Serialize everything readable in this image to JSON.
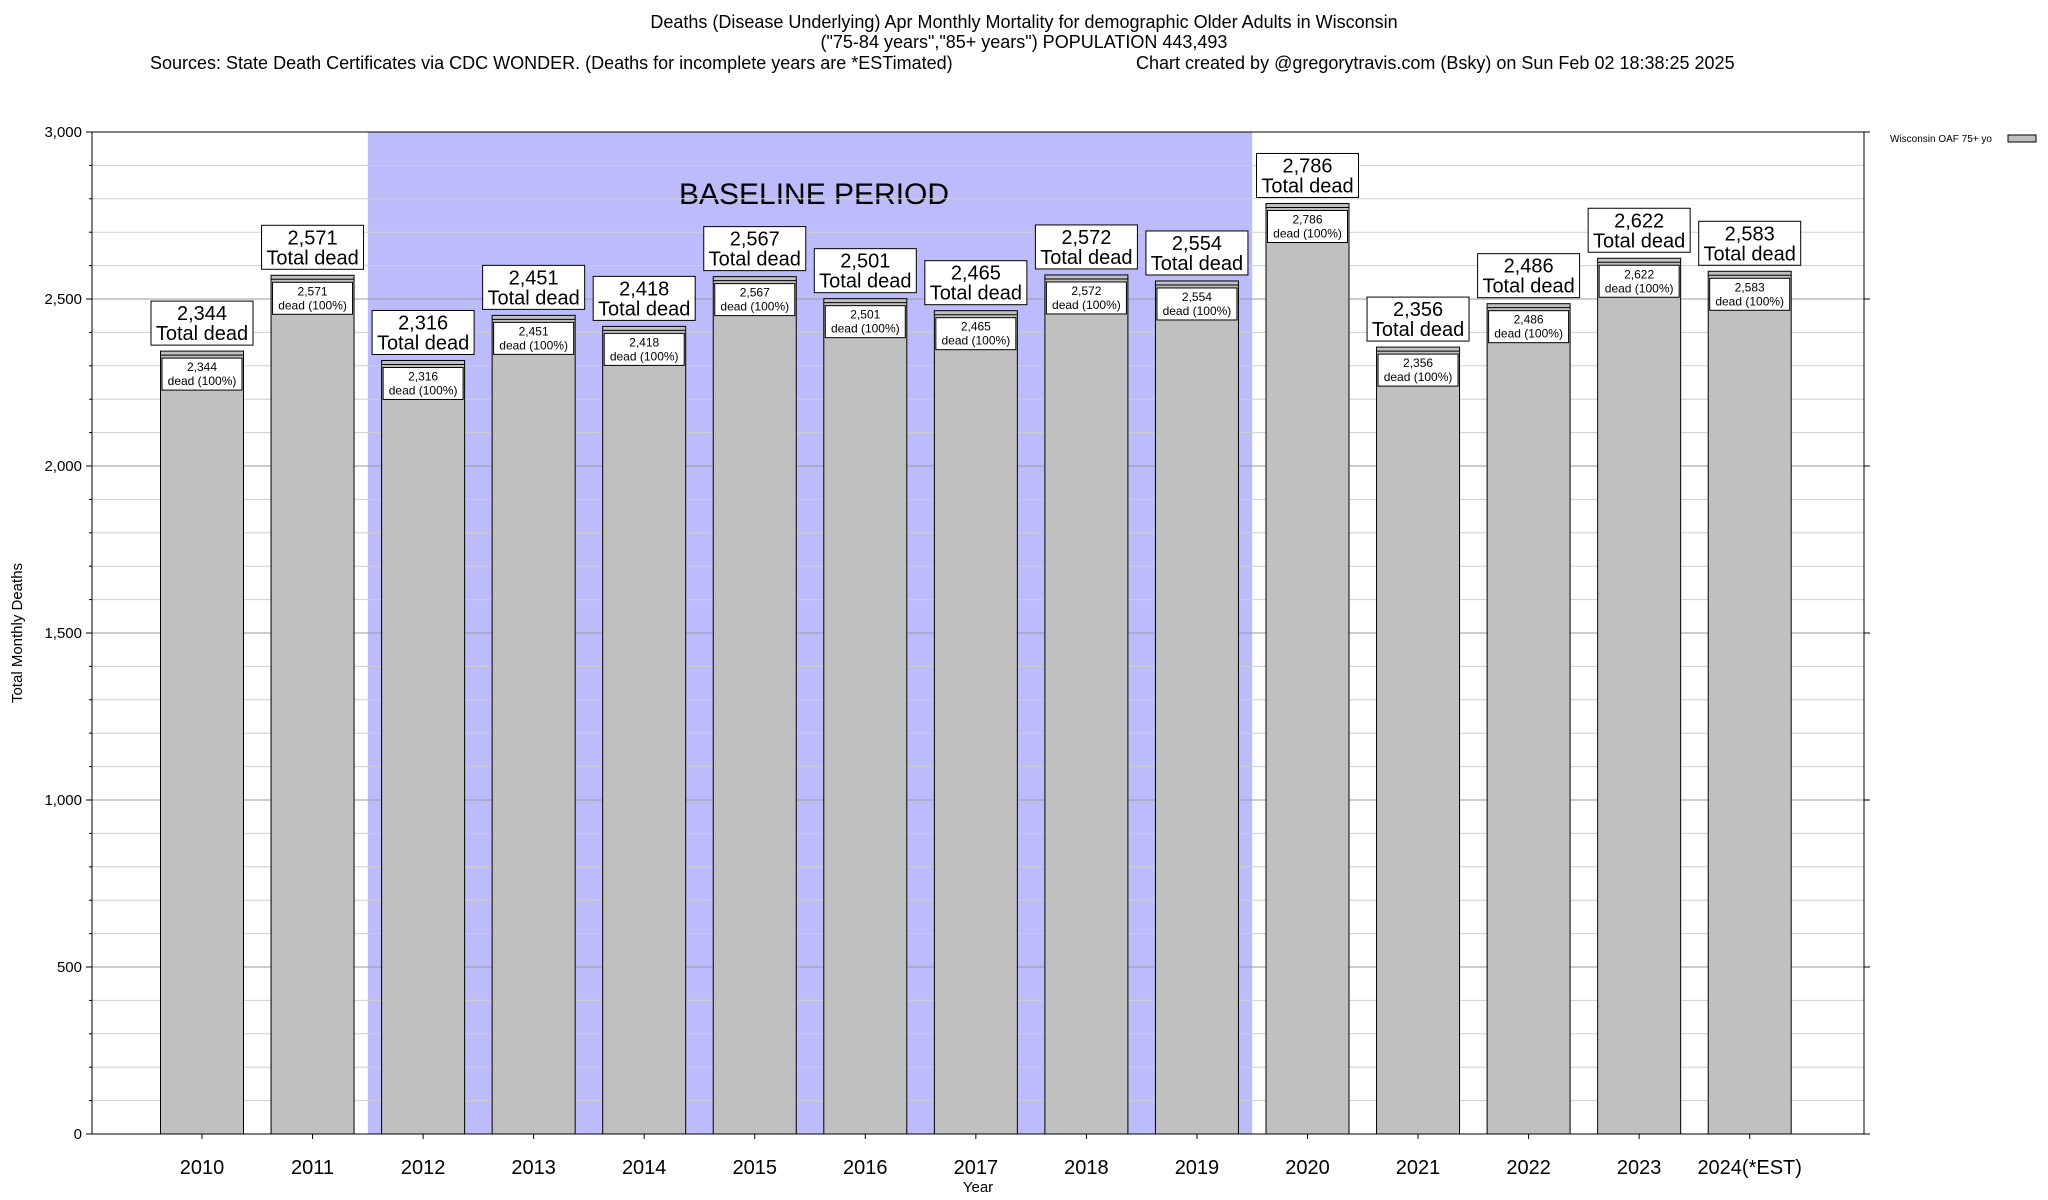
{
  "chart_data": {
    "type": "bar",
    "title": "Deaths (Disease Underlying) Apr Monthly Mortality for demographic Older Adults in Wisconsin",
    "subtitle": "(\"75-84 years\",\"85+ years\") POPULATION 443,493",
    "sources": "Sources: State Death Certificates via CDC WONDER. (Deaths for incomplete years are *ESTimated)",
    "credit": "Chart created by @gregorytravis.com (Bsky) on Sun Feb 02 18:38:25 2025",
    "xlabel": "Year",
    "ylabel": "Total Monthly Deaths",
    "ylim": [
      0,
      3000
    ],
    "yticks": [
      0,
      500,
      1000,
      1500,
      2000,
      2500,
      3000
    ],
    "ytick_labels": [
      "0",
      "500",
      "1,000",
      "1,500",
      "2,000",
      "2,500",
      "3,000"
    ],
    "minor_step": 100,
    "categories": [
      "2010",
      "2011",
      "2012",
      "2013",
      "2014",
      "2015",
      "2016",
      "2017",
      "2018",
      "2019",
      "2020",
      "2021",
      "2022",
      "2023",
      "2024(*EST)"
    ],
    "series": [
      {
        "name": "Wisconsin OAF 75+ yo",
        "values": [
          2344,
          2571,
          2316,
          2451,
          2418,
          2567,
          2501,
          2465,
          2572,
          2554,
          2786,
          2356,
          2486,
          2622,
          2583
        ],
        "color": "#c0c0c0"
      }
    ],
    "value_labels": [
      "2,344",
      "2,571",
      "2,316",
      "2,451",
      "2,418",
      "2,567",
      "2,501",
      "2,465",
      "2,572",
      "2,554",
      "2,786",
      "2,356",
      "2,486",
      "2,622",
      "2,583"
    ],
    "top_label_suffix": "Total dead",
    "inner_label_suffix": "dead (100%)",
    "baseline": {
      "label": "BASELINE PERIOD",
      "start": "2012",
      "end": "2019",
      "color": "#bcbcfc"
    },
    "legend": {
      "label": "Wisconsin OAF 75+ yo",
      "placement": "top-right outside"
    }
  }
}
